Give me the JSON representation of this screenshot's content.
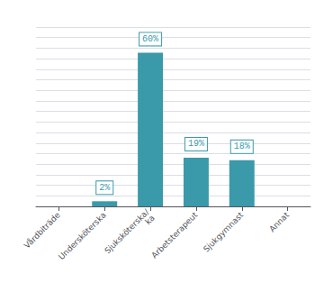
{
  "chart_data": {
    "type": "bar",
    "categories": [
      "Vårdbiträde",
      "Undersköterska",
      "Sjuksköterska/\nka",
      "Arbetsterapeut",
      "Sjukgymnast",
      "Annat"
    ],
    "values": [
      0,
      2,
      60,
      19,
      18,
      0
    ],
    "value_labels": [
      null,
      "2%",
      "60%",
      "19%",
      "18%",
      null
    ],
    "data_labels": true,
    "color": "#3a9aaa",
    "ylim": [
      0,
      70
    ],
    "yticks": [
      0,
      4.117647058823529,
      8.235294117647058,
      12.352941176470587,
      16.470588235294116,
      20.588235294117645,
      24.705882352941174,
      28.823529411764703,
      32.94117647058823,
      37.05882352941176,
      41.17647058823529,
      45.29411764705881,
      49.41176470588235,
      53.52941176470588,
      57.647058823529406,
      61.76470588235293,
      65.88235294117646,
      70
    ],
    "grid": true,
    "tick_labels": "x"
  }
}
